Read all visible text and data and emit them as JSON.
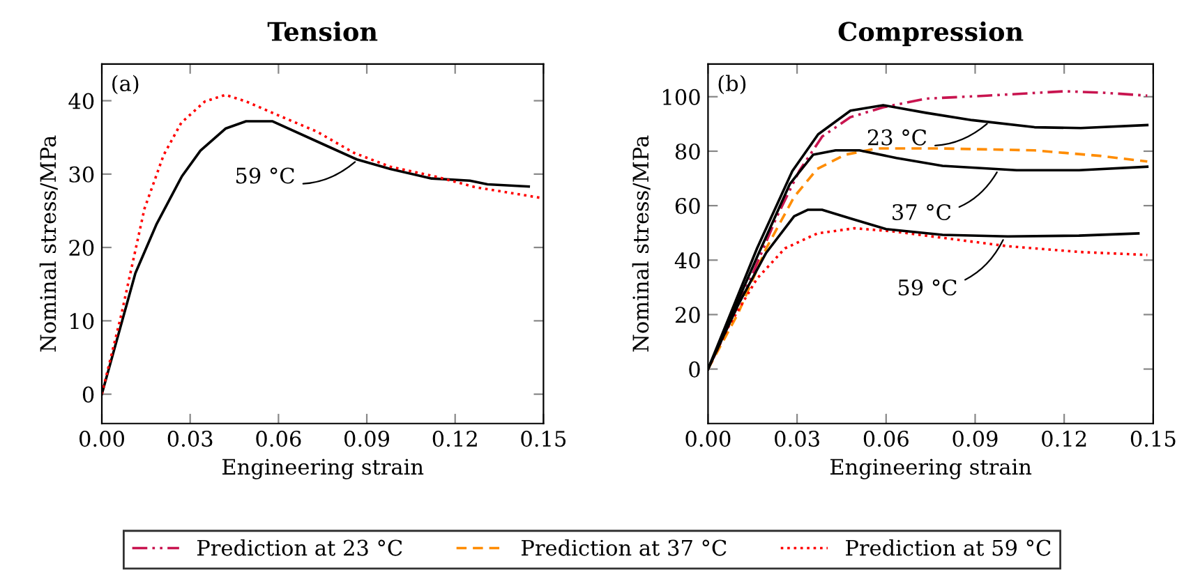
{
  "chart_data": [
    {
      "type": "line",
      "title": "Tension",
      "xlabel": "Engineering strain",
      "ylabel": "Nominal stress/MPa",
      "xlim": [
        0,
        0.15
      ],
      "xticks": [
        {
          "value": 0,
          "label": "0.00"
        },
        0.03,
        0.06,
        0.09,
        0.12,
        0.15
      ],
      "ylim": [
        -4,
        45
      ],
      "yticks": [
        0,
        10,
        20,
        30,
        40
      ],
      "marker": "none",
      "legend": "bottom",
      "annotations": [
        "(a)",
        {
          "text": "59 °C",
          "x": 0.087,
          "y": 32
        }
      ],
      "series": [
        {
          "color": "#000000",
          "line_style": "solid",
          "x": [
            0,
            0.0114,
            0.0185,
            0.0272,
            0.0335,
            0.042,
            0.049,
            0.058,
            0.0761,
            0.0866,
            0.098,
            0.112,
            0.125,
            0.131,
            0.145
          ],
          "values": [
            0,
            16.5,
            23.1,
            29.7,
            33.2,
            36.2,
            37.2,
            37.2,
            33.9,
            32,
            30.7,
            29.4,
            29.1,
            28.6,
            28.3
          ]
        },
        {
          "name": "Prediction at 59 °C",
          "color": "#ff0000",
          "line_style": "dotted",
          "x": [
            0,
            0.0066,
            0.0145,
            0.021,
            0.027,
            0.035,
            0.042,
            0.049,
            0.06,
            0.073,
            0.0856,
            0.098,
            0.114,
            0.127,
            0.15
          ],
          "values": [
            0,
            10.8,
            25.3,
            32.6,
            37,
            39.9,
            40.8,
            39.9,
            38,
            35.8,
            32.9,
            31,
            29.6,
            28.2,
            26.7
          ]
        }
      ]
    },
    {
      "type": "line",
      "title": "Compression",
      "xlabel": "Engineering strain",
      "ylabel": "Nominal stress/MPa",
      "xlim": [
        0,
        0.15
      ],
      "xticks": [
        {
          "value": 0,
          "label": "0.00"
        },
        0.03,
        0.06,
        0.09,
        0.12,
        0.15
      ],
      "ylim": [
        -20,
        112
      ],
      "yticks": [
        0,
        20,
        40,
        60,
        80,
        100
      ],
      "marker": "none",
      "legend": "bottom",
      "annotations": [
        "(b)",
        {
          "text": "23 °C",
          "x": 0.095,
          "y": 91
        },
        {
          "text": "37 °C",
          "x": 0.098,
          "y": 73.5
        },
        {
          "text": "59 °C",
          "x": 0.1,
          "y": 48.7
        }
      ],
      "series": [
        {
          "name": "Prediction at 23 °C",
          "color": "#c8144f",
          "line_style": "dashdot",
          "x": [
            0,
            0.015,
            0.0229,
            0.0307,
            0.0385,
            0.048,
            0.059,
            0.0734,
            0.094,
            0.12,
            0.133,
            0.148
          ],
          "values": [
            0,
            34.8,
            55.3,
            72.7,
            85.4,
            92.5,
            96.1,
            99.3,
            100.4,
            102,
            101.5,
            100.4
          ]
        },
        {
          "name": "Prediction at 37 °C",
          "color": "#ff8c00",
          "line_style": "dashed",
          "x": [
            0,
            0.0102,
            0.0196,
            0.029,
            0.0368,
            0.0462,
            0.057,
            0.079,
            0.11,
            0.132,
            0.148
          ],
          "values": [
            0,
            20.6,
            44.3,
            63.2,
            73.5,
            78.7,
            81,
            81,
            80.3,
            78.3,
            76.2
          ]
        },
        {
          "name": "Prediction at 59 °C",
          "color": "#ff0000",
          "line_style": "dotted",
          "x": [
            0,
            0.007,
            0.0165,
            0.0259,
            0.0368,
            0.0493,
            0.062,
            0.079,
            0.101,
            0.125,
            0.148
          ],
          "values": [
            0,
            15.8,
            33.2,
            44.3,
            49.8,
            51.7,
            50.6,
            48.2,
            45.1,
            43,
            41.9
          ]
        },
        {
          "color": "#000000",
          "line_style": "solid",
          "x": [
            0,
            0.0165,
            0.0284,
            0.0371,
            0.048,
            0.059,
            0.0734,
            0.089,
            0.11,
            0.1256,
            0.148
          ],
          "values": [
            0,
            44.3,
            72.7,
            86.2,
            94.9,
            96.9,
            94.1,
            91.4,
            88.8,
            88.5,
            89.6
          ]
        },
        {
          "color": "#000000",
          "line_style": "solid",
          "x": [
            0,
            0.0165,
            0.0276,
            0.0354,
            0.043,
            0.051,
            0.0635,
            0.079,
            0.104,
            0.125,
            0.148
          ],
          "values": [
            0,
            41.1,
            68,
            78.7,
            80.3,
            80.3,
            77.5,
            74.6,
            73,
            73,
            74.3
          ]
        },
        {
          "color": "#000000",
          "line_style": "solid",
          "x": [
            0,
            0.0102,
            0.0196,
            0.029,
            0.0337,
            0.0384,
            0.048,
            0.06,
            0.079,
            0.101,
            0.125,
            0.145
          ],
          "values": [
            0,
            23.7,
            42.7,
            56.1,
            58.5,
            58.5,
            55.3,
            51.4,
            49.3,
            48.7,
            49,
            49.8
          ]
        }
      ]
    }
  ]
}
